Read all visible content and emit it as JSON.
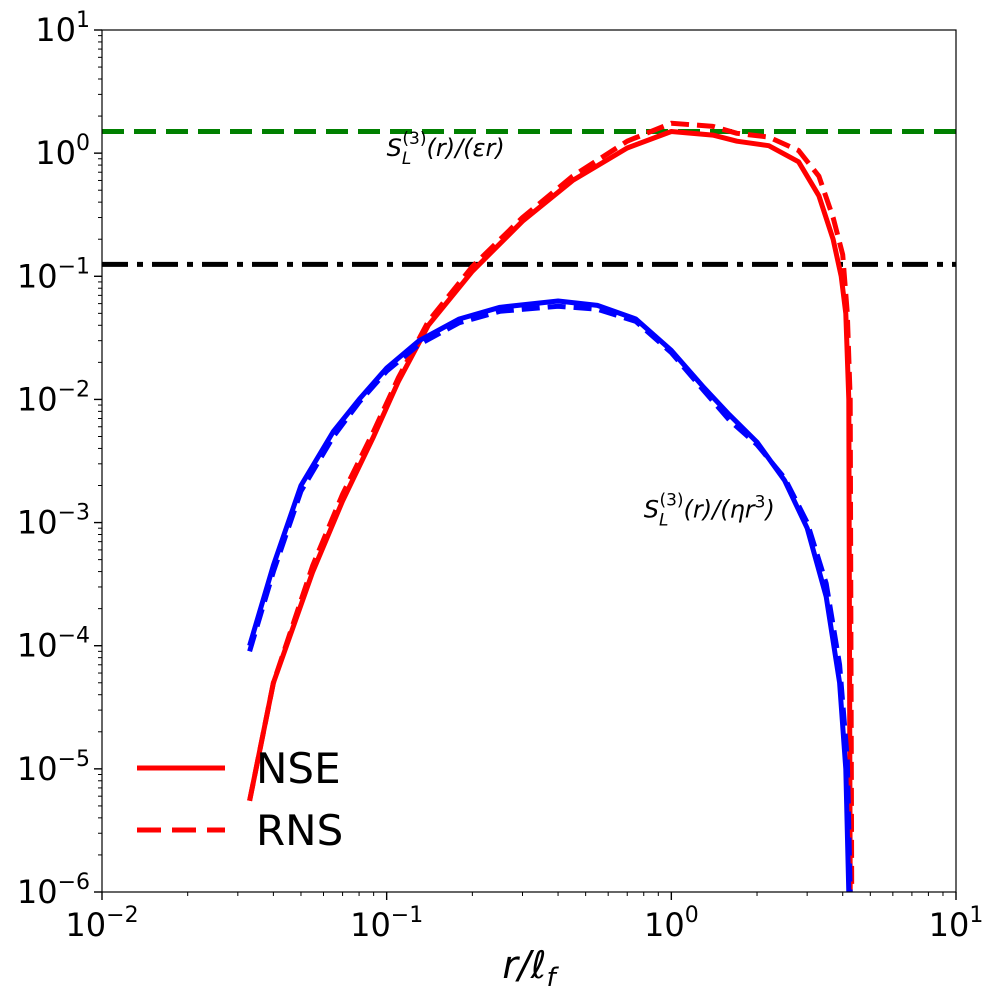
{
  "chart_data": {
    "type": "line",
    "x_scale": "log",
    "y_scale": "log",
    "xlim": [
      0.01,
      10
    ],
    "ylim": [
      1e-06,
      10
    ],
    "x_ticks": [
      {
        "base": "10",
        "exp": "−2"
      },
      {
        "base": "10",
        "exp": "−1"
      },
      {
        "base": "10",
        "exp": "0"
      },
      {
        "base": "10",
        "exp": "1"
      }
    ],
    "y_ticks": [
      {
        "base": "10",
        "exp": "−6"
      },
      {
        "base": "10",
        "exp": "−5"
      },
      {
        "base": "10",
        "exp": "−4"
      },
      {
        "base": "10",
        "exp": "−3"
      },
      {
        "base": "10",
        "exp": "−2"
      },
      {
        "base": "10",
        "exp": "−1"
      },
      {
        "base": "10",
        "exp": "0"
      },
      {
        "base": "10",
        "exp": "1"
      }
    ],
    "xlabel": {
      "main": "r/ℓ",
      "sub": "f"
    },
    "grid": false,
    "legend": {
      "placement": "lower-left",
      "entries": [
        {
          "label": "NSE",
          "style": "solid",
          "color": "#ff0000"
        },
        {
          "label": "RNS",
          "style": "dashed",
          "color": "#ff0000"
        }
      ]
    },
    "reference_lines": [
      {
        "y": 1.5,
        "color": "#008000",
        "style": "dashed"
      },
      {
        "y": 0.125,
        "color": "#000000",
        "style": "dashdot"
      }
    ],
    "annotations": [
      {
        "id": "eps",
        "x": 0.1,
        "y": 0.95,
        "parts": [
          "S",
          "L",
          "(3)",
          "(r)/(εr)"
        ]
      },
      {
        "id": "eta",
        "x": 0.8,
        "y": 0.0011,
        "parts": [
          "S",
          "L",
          "(3)",
          "(r)/(ηr",
          "3",
          ")"
        ]
      }
    ],
    "series": [
      {
        "name": "NSE",
        "color": "#ff0000",
        "style": "solid",
        "points": [
          [
            0.033,
            5.5e-06
          ],
          [
            0.04,
            5e-05
          ],
          [
            0.055,
            0.0004
          ],
          [
            0.07,
            0.0015
          ],
          [
            0.09,
            0.005
          ],
          [
            0.11,
            0.014
          ],
          [
            0.14,
            0.04
          ],
          [
            0.2,
            0.11
          ],
          [
            0.3,
            0.28
          ],
          [
            0.45,
            0.6
          ],
          [
            0.7,
            1.1
          ],
          [
            1.0,
            1.5
          ],
          [
            1.4,
            1.4
          ],
          [
            1.7,
            1.25
          ],
          [
            2.2,
            1.15
          ],
          [
            2.8,
            0.85
          ],
          [
            3.3,
            0.45
          ],
          [
            3.7,
            0.2
          ],
          [
            3.95,
            0.1
          ],
          [
            4.1,
            0.05
          ],
          [
            4.2,
            0.01
          ],
          [
            4.25,
            1e-06
          ]
        ]
      },
      {
        "name": "RNS",
        "color": "#ff0000",
        "style": "dashed",
        "points": [
          [
            0.033,
            5.5e-06
          ],
          [
            0.04,
            5e-05
          ],
          [
            0.055,
            0.00045
          ],
          [
            0.07,
            0.0017
          ],
          [
            0.09,
            0.0055
          ],
          [
            0.11,
            0.015
          ],
          [
            0.14,
            0.043
          ],
          [
            0.2,
            0.12
          ],
          [
            0.3,
            0.3
          ],
          [
            0.45,
            0.65
          ],
          [
            0.7,
            1.25
          ],
          [
            1.0,
            1.75
          ],
          [
            1.4,
            1.65
          ],
          [
            1.7,
            1.45
          ],
          [
            2.2,
            1.35
          ],
          [
            2.8,
            1.05
          ],
          [
            3.3,
            0.65
          ],
          [
            3.7,
            0.3
          ],
          [
            4.0,
            0.15
          ],
          [
            4.15,
            0.05
          ],
          [
            4.25,
            0.01
          ],
          [
            4.3,
            1e-06
          ]
        ]
      },
      {
        "name": "",
        "color": "#0000ff",
        "style": "solid",
        "points": [
          [
            0.033,
            0.0001
          ],
          [
            0.04,
            0.00045
          ],
          [
            0.05,
            0.002
          ],
          [
            0.065,
            0.0055
          ],
          [
            0.08,
            0.01
          ],
          [
            0.1,
            0.018
          ],
          [
            0.13,
            0.03
          ],
          [
            0.18,
            0.045
          ],
          [
            0.25,
            0.056
          ],
          [
            0.4,
            0.063
          ],
          [
            0.55,
            0.058
          ],
          [
            0.75,
            0.045
          ],
          [
            1.0,
            0.025
          ],
          [
            1.3,
            0.0125
          ],
          [
            1.6,
            0.0075
          ],
          [
            2.0,
            0.0045
          ],
          [
            2.5,
            0.0022
          ],
          [
            3.0,
            0.0009
          ],
          [
            3.5,
            0.00025
          ],
          [
            3.9,
            5e-05
          ],
          [
            4.1,
            1e-05
          ],
          [
            4.2,
            1e-06
          ]
        ]
      },
      {
        "name": "",
        "color": "#0000ff",
        "style": "dashed",
        "points": [
          [
            0.033,
            9e-05
          ],
          [
            0.04,
            0.0004
          ],
          [
            0.05,
            0.0018
          ],
          [
            0.065,
            0.005
          ],
          [
            0.08,
            0.0095
          ],
          [
            0.1,
            0.017
          ],
          [
            0.13,
            0.028
          ],
          [
            0.18,
            0.042
          ],
          [
            0.25,
            0.052
          ],
          [
            0.4,
            0.057
          ],
          [
            0.55,
            0.054
          ],
          [
            0.75,
            0.043
          ],
          [
            1.0,
            0.024
          ],
          [
            1.3,
            0.0118
          ],
          [
            1.6,
            0.0068
          ],
          [
            2.0,
            0.0043
          ],
          [
            2.5,
            0.0023
          ],
          [
            3.0,
            0.001
          ],
          [
            3.5,
            0.00032
          ],
          [
            3.9,
            7e-05
          ],
          [
            4.15,
            1.2e-05
          ],
          [
            4.25,
            1e-06
          ]
        ]
      }
    ]
  }
}
